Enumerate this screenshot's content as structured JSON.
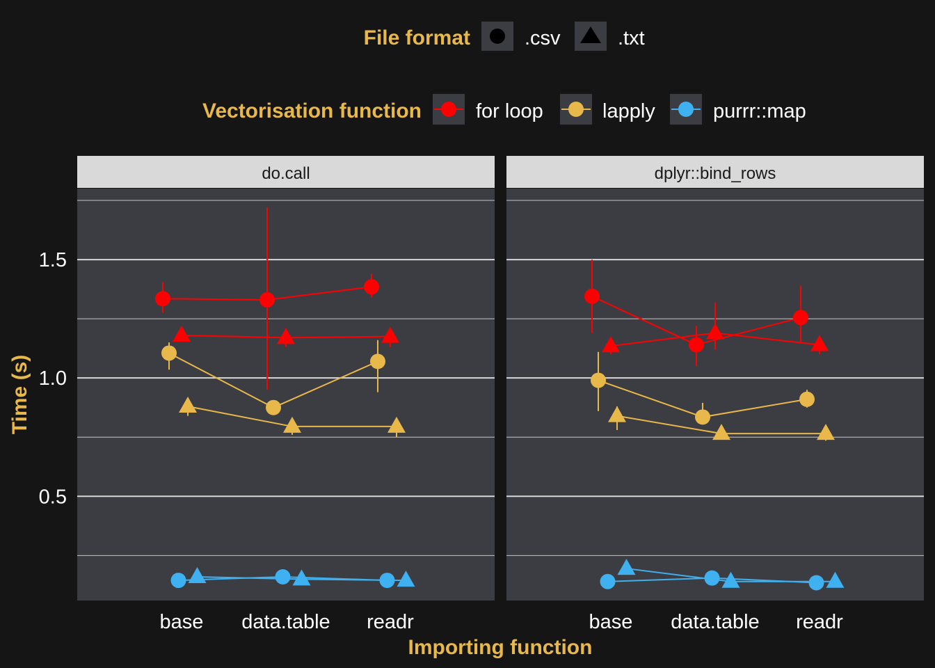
{
  "legend": {
    "file_format": {
      "title": "File format",
      "items": [
        {
          "label": ".csv",
          "shape": "circle"
        },
        {
          "label": ".txt",
          "shape": "triangle"
        }
      ]
    },
    "vectorisation": {
      "title": "Vectorisation function",
      "items": [
        {
          "label": "for loop",
          "color": "#ff0000"
        },
        {
          "label": "lapply",
          "color": "#e8b84a"
        },
        {
          "label": "purrr::map",
          "color": "#3fb0f0"
        }
      ]
    }
  },
  "colors": {
    "background": "#151515",
    "panel": "#3c3d42",
    "strip": "#d9d9d9",
    "accent_title": "#e8b84a",
    "for loop": "#ff0000",
    "lapply": "#e8b84a",
    "purrr::map": "#3fb0f0"
  },
  "chart_data": {
    "type": "line",
    "xlabel": "Importing function",
    "ylabel": "Time (s)",
    "categories": [
      "base",
      "data.table",
      "readr"
    ],
    "ylim": [
      0.06,
      1.8
    ],
    "yticks": [
      0.5,
      1.0,
      1.5
    ],
    "ytick_labels": [
      "0.5",
      "1.0",
      "1.5"
    ],
    "grid": true,
    "legend_position": "top",
    "panels": [
      {
        "title": "do.call",
        "series": [
          {
            "vectorisation": "for loop",
            "format": ".csv",
            "values": [
              1.335,
              1.33,
              1.385
            ],
            "lower": [
              1.275,
              0.95,
              1.34
            ],
            "upper": [
              1.405,
              1.72,
              1.44
            ]
          },
          {
            "vectorisation": "for loop",
            "format": ".txt",
            "values": [
              1.18,
              1.17,
              1.175
            ],
            "lower": [
              1.16,
              1.13,
              1.13
            ],
            "upper": [
              1.205,
              1.21,
              1.21
            ]
          },
          {
            "vectorisation": "lapply",
            "format": ".csv",
            "values": [
              1.105,
              0.875,
              1.07
            ],
            "lower": [
              1.035,
              0.845,
              0.94
            ],
            "upper": [
              1.15,
              0.905,
              1.16
            ]
          },
          {
            "vectorisation": "lapply",
            "format": ".txt",
            "values": [
              0.88,
              0.795,
              0.795
            ],
            "lower": [
              0.84,
              0.76,
              0.75
            ],
            "upper": [
              0.905,
              0.82,
              0.825
            ]
          },
          {
            "vectorisation": "purrr::map",
            "format": ".csv",
            "values": [
              0.145,
              0.16,
              0.145
            ],
            "lower": [
              0.14,
              0.15,
              0.14
            ],
            "upper": [
              0.15,
              0.17,
              0.15
            ]
          },
          {
            "vectorisation": "purrr::map",
            "format": ".txt",
            "values": [
              0.16,
              0.15,
              0.145
            ],
            "lower": [
              0.15,
              0.145,
              0.14
            ],
            "upper": [
              0.17,
              0.16,
              0.15
            ]
          }
        ]
      },
      {
        "title": "dplyr::bind_rows",
        "series": [
          {
            "vectorisation": "for loop",
            "format": ".csv",
            "values": [
              1.345,
              1.14,
              1.255
            ],
            "lower": [
              1.19,
              1.05,
              1.15
            ],
            "upper": [
              1.5,
              1.22,
              1.39
            ]
          },
          {
            "vectorisation": "for loop",
            "format": ".txt",
            "values": [
              1.135,
              1.19,
              1.14
            ],
            "lower": [
              1.1,
              1.12,
              1.1
            ],
            "upper": [
              1.17,
              1.32,
              1.17
            ]
          },
          {
            "vectorisation": "lapply",
            "format": ".csv",
            "values": [
              0.99,
              0.835,
              0.91
            ],
            "lower": [
              0.86,
              0.805,
              0.875
            ],
            "upper": [
              1.11,
              0.895,
              0.95
            ]
          },
          {
            "vectorisation": "lapply",
            "format": ".txt",
            "values": [
              0.84,
              0.765,
              0.765
            ],
            "lower": [
              0.78,
              0.745,
              0.735
            ],
            "upper": [
              0.88,
              0.78,
              0.785
            ]
          },
          {
            "vectorisation": "purrr::map",
            "format": ".csv",
            "values": [
              0.14,
              0.155,
              0.135
            ],
            "lower": [
              0.135,
              0.15,
              0.13
            ],
            "upper": [
              0.145,
              0.16,
              0.14
            ]
          },
          {
            "vectorisation": "purrr::map",
            "format": ".txt",
            "values": [
              0.195,
              0.14,
              0.14
            ],
            "lower": [
              0.185,
              0.135,
              0.135
            ],
            "upper": [
              0.205,
              0.145,
              0.145
            ]
          }
        ]
      }
    ]
  }
}
